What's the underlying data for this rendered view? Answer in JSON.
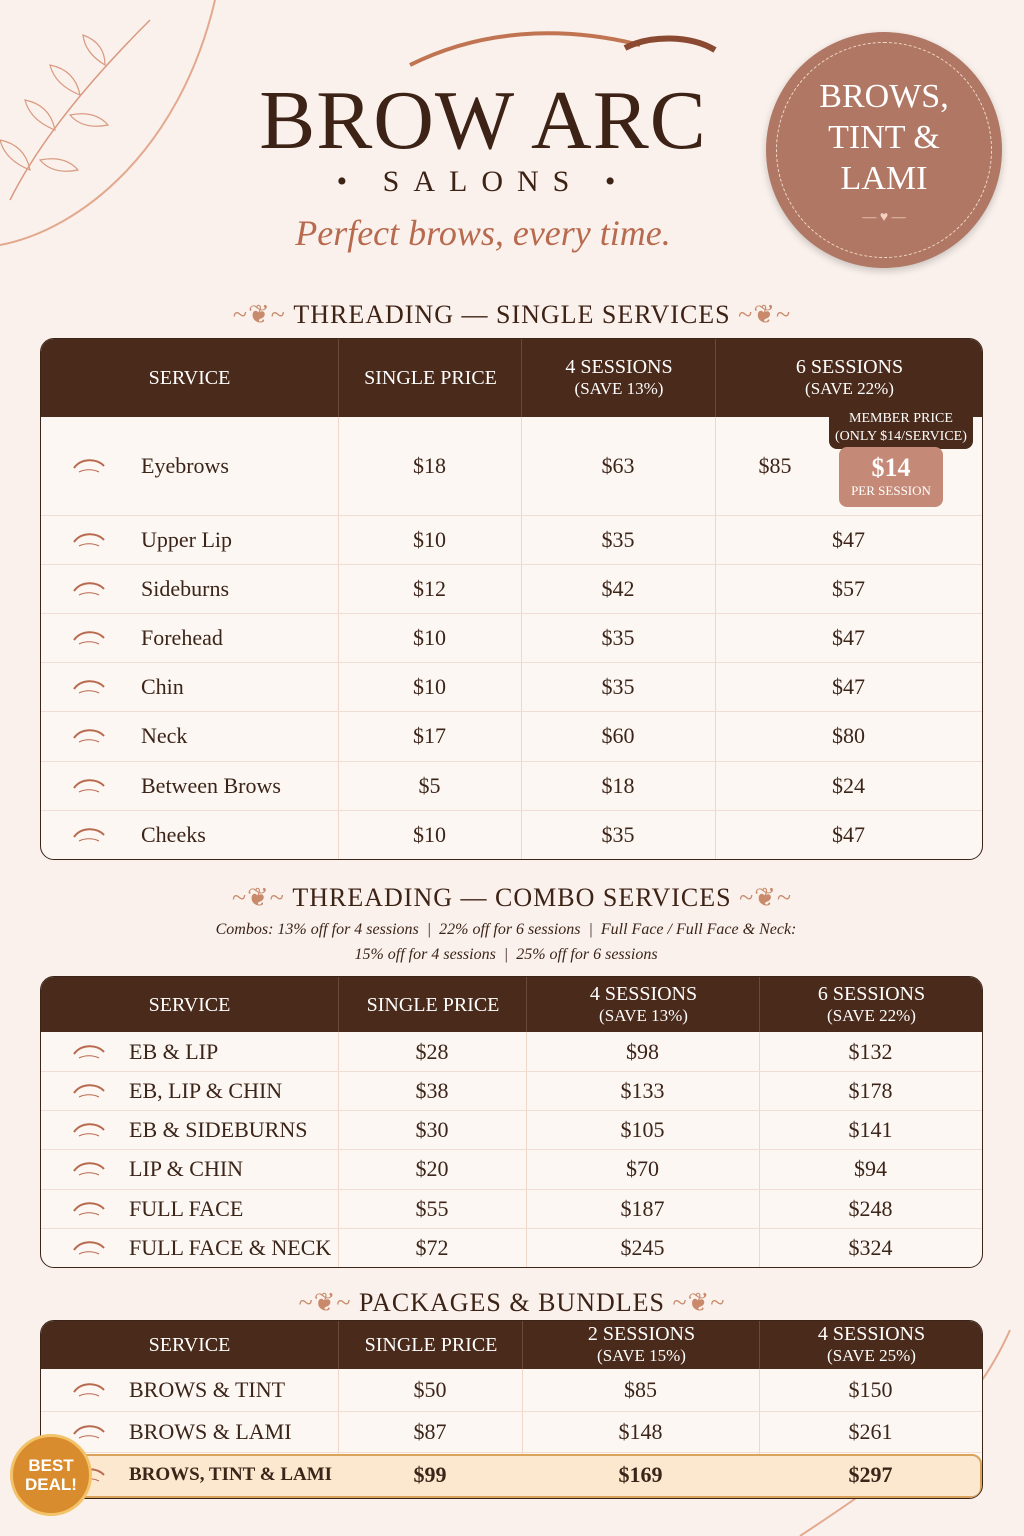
{
  "header": {
    "brand": "BROW ARC",
    "sub": "SALONS",
    "tagline": "Perfect brows, every time.",
    "badge": [
      "BROWS,",
      "TINT &",
      "LAMI"
    ]
  },
  "sections": [
    {
      "title": "THREADING — SINGLE SERVICES",
      "columns": [
        [
          "SERVICE"
        ],
        [
          "SINGLE PRICE"
        ],
        [
          "4 SESSIONS",
          "(SAVE 13%)"
        ],
        [
          "6 SESSIONS",
          "(SAVE 22%)"
        ]
      ],
      "member_note": [
        "MEMBER PRICE",
        "(ONLY $14/SERVICE)"
      ],
      "member_price": "$14",
      "member_unit": "PER SESSION",
      "rows": [
        [
          "Eyebrows",
          "$18",
          "$63",
          "$85"
        ],
        [
          "Upper Lip",
          "$10",
          "$35",
          "$47"
        ],
        [
          "Sideburns",
          "$12",
          "$42",
          "$57"
        ],
        [
          "Forehead",
          "$10",
          "$35",
          "$47"
        ],
        [
          "Chin",
          "$10",
          "$35",
          "$47"
        ],
        [
          "Neck",
          "$17",
          "$60",
          "$80"
        ],
        [
          "Between Brows",
          "$5",
          "$18",
          "$24"
        ],
        [
          "Cheeks",
          "$10",
          "$35",
          "$47"
        ]
      ]
    },
    {
      "title": "THREADING — COMBO SERVICES",
      "note": [
        "Combos: 13% off for 4 sessions  |  22% off for 6 sessions  |  Full Face / Full Face & Neck:",
        "15% off for 4 sessions  |  25% off for 6 sessions"
      ],
      "columns": [
        [
          "SERVICE"
        ],
        [
          "SINGLE PRICE"
        ],
        [
          "4 SESSIONS",
          "(SAVE 13%)"
        ],
        [
          "6 SESSIONS",
          "(SAVE 22%)"
        ]
      ],
      "rows": [
        [
          "EB & LIP",
          "$28",
          "$98",
          "$132"
        ],
        [
          "EB, LIP & CHIN",
          "$38",
          "$133",
          "$178"
        ],
        [
          "EB & SIDEBURNS",
          "$30",
          "$105",
          "$141"
        ],
        [
          "LIP & CHIN",
          "$20",
          "$70",
          "$94"
        ],
        [
          "FULL FACE",
          "$55",
          "$187",
          "$248"
        ],
        [
          "FULL FACE & NECK",
          "$72",
          "$245",
          "$324"
        ]
      ]
    },
    {
      "title": "PACKAGES & BUNDLES",
      "columns": [
        [
          "SERVICE"
        ],
        [
          "SINGLE PRICE"
        ],
        [
          "2 SESSIONS",
          "(SAVE 15%)"
        ],
        [
          "4 SESSIONS",
          "(SAVE 25%)"
        ]
      ],
      "rows": [
        [
          "BROWS & TINT",
          "$50",
          "$85",
          "$150"
        ],
        [
          "BROWS & LAMI",
          "$87",
          "$148",
          "$261"
        ],
        [
          "BROWS, TINT & LAMI",
          "$99",
          "$169",
          "$297"
        ]
      ],
      "best_deal": [
        "BEST",
        "DEAL!"
      ]
    }
  ]
}
